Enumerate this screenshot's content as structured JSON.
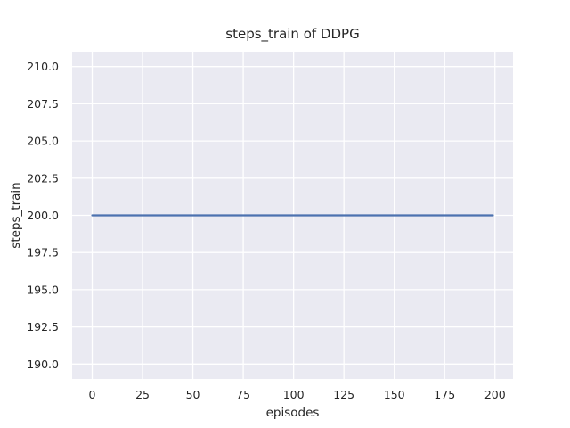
{
  "figure": {
    "background": "#ffffff"
  },
  "chart_data": {
    "type": "line",
    "title": "steps_train of DDPG",
    "xlabel": "episodes",
    "ylabel": "steps_train",
    "x_ticks": [
      0,
      25,
      50,
      75,
      100,
      125,
      150,
      175,
      200
    ],
    "x_tick_labels": [
      "0",
      "25",
      "50",
      "75",
      "100",
      "125",
      "150",
      "175",
      "200"
    ],
    "y_ticks": [
      190,
      192.5,
      195,
      197.5,
      200,
      202.5,
      205,
      207.5,
      210
    ],
    "y_tick_labels": [
      "190.0",
      "192.5",
      "195.0",
      "197.5",
      "200.0",
      "202.5",
      "205.0",
      "207.5",
      "210.0"
    ],
    "xlim": [
      -9.95,
      208.95
    ],
    "ylim": [
      189,
      211
    ],
    "grid": true,
    "legend": false,
    "style": {
      "plot_background": "#eaeaf2",
      "grid_color": "#ffffff",
      "text_color": "#262626",
      "grid_line_width": 1.3,
      "line_width": 2.2
    },
    "series": [
      {
        "name": "steps_train",
        "color": "#4c72b0",
        "x": [
          0,
          199
        ],
        "y": [
          200,
          200
        ],
        "description": "constant value 200 across all episodes"
      }
    ]
  }
}
